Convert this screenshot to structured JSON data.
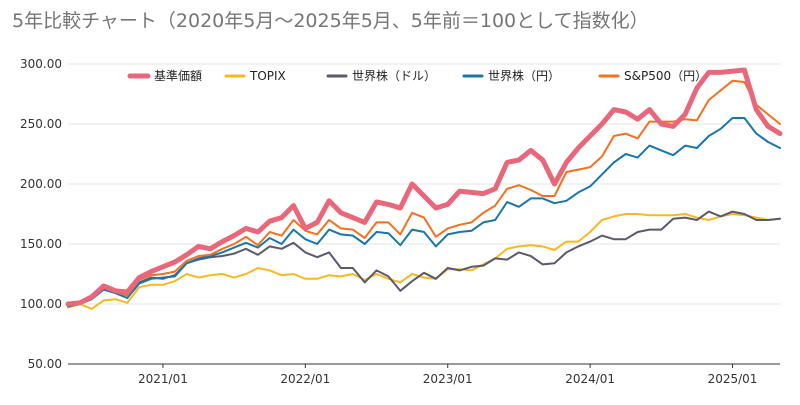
{
  "chart_data": {
    "type": "line",
    "title": "5年比較チャート（2020年5月～2025年5月、5年前＝100として指数化）",
    "xlabel": "",
    "ylabel": "",
    "ylim": [
      50,
      300
    ],
    "yticks": [
      "300.00",
      "250.00",
      "200.00",
      "150.00",
      "100.00",
      "50.00"
    ],
    "xtick_labels": [
      "2021/01",
      "2022/01",
      "2023/01",
      "2024/01",
      "2025/01"
    ],
    "x_start": "2020-05",
    "x_end": "2025-05",
    "grid": true,
    "legend_position": "top",
    "series": [
      {
        "name": "基準価額",
        "color": "#e8677a",
        "emphasis": true,
        "values": [
          100,
          101,
          106,
          115,
          111,
          110,
          122,
          127,
          131,
          135,
          141,
          148,
          146,
          152,
          157,
          163,
          160,
          169,
          172,
          182,
          163,
          168,
          186,
          176,
          172,
          168,
          185,
          183,
          180,
          200,
          190,
          180,
          183,
          194,
          193,
          192,
          196,
          218,
          220,
          228,
          220,
          200,
          218,
          230,
          240,
          250,
          262,
          260,
          254,
          262,
          250,
          248,
          258,
          280,
          293,
          293,
          294,
          295,
          262,
          248,
          242
        ]
      },
      {
        "name": "TOPIX",
        "color": "#f7b91f",
        "values": [
          97,
          100,
          96,
          103,
          104,
          101,
          114,
          116,
          116,
          119,
          125,
          122,
          124,
          125,
          122,
          125,
          130,
          128,
          124,
          125,
          121,
          121,
          124,
          123,
          125,
          120,
          125,
          121,
          118,
          125,
          122,
          121,
          129,
          129,
          128,
          133,
          138,
          146,
          148,
          149,
          148,
          145,
          152,
          152,
          160,
          170,
          173,
          175,
          175,
          174,
          174,
          174,
          175,
          172,
          170,
          173,
          175,
          174,
          172,
          170,
          171
        ]
      },
      {
        "name": "世界株（ドル）",
        "color": "#595a6e",
        "values": [
          99,
          101,
          105,
          113,
          112,
          108,
          118,
          122,
          121,
          124,
          134,
          137,
          139,
          140,
          142,
          146,
          141,
          148,
          146,
          151,
          143,
          139,
          143,
          130,
          130,
          118,
          128,
          123,
          111,
          119,
          126,
          121,
          130,
          128,
          131,
          132,
          138,
          137,
          143,
          140,
          133,
          134,
          143,
          148,
          152,
          157,
          154,
          154,
          160,
          162,
          162,
          171,
          172,
          170,
          177,
          173,
          177,
          175,
          170,
          170,
          171
        ]
      },
      {
        "name": "世界株（円）",
        "color": "#1976ab",
        "values": [
          98,
          100,
          104,
          112,
          109,
          105,
          117,
          121,
          122,
          123,
          134,
          138,
          140,
          143,
          147,
          151,
          147,
          155,
          150,
          162,
          154,
          150,
          162,
          158,
          157,
          150,
          160,
          159,
          149,
          162,
          160,
          148,
          158,
          160,
          161,
          168,
          170,
          185,
          181,
          188,
          188,
          184,
          186,
          193,
          198,
          208,
          218,
          225,
          222,
          232,
          228,
          224,
          232,
          230,
          240,
          246,
          255,
          255,
          242,
          235,
          230
        ]
      },
      {
        "name": "S&P500（円）",
        "color": "#f47020",
        "values": [
          99,
          101,
          106,
          114,
          110,
          107,
          120,
          124,
          125,
          127,
          136,
          140,
          141,
          146,
          150,
          156,
          149,
          160,
          157,
          170,
          161,
          158,
          170,
          163,
          162,
          155,
          168,
          168,
          158,
          176,
          172,
          156,
          163,
          166,
          168,
          176,
          182,
          196,
          199,
          195,
          190,
          190,
          210,
          212,
          214,
          223,
          240,
          242,
          238,
          252,
          252,
          252,
          254,
          253,
          270,
          278,
          286,
          285,
          266,
          258,
          250
        ]
      }
    ]
  }
}
